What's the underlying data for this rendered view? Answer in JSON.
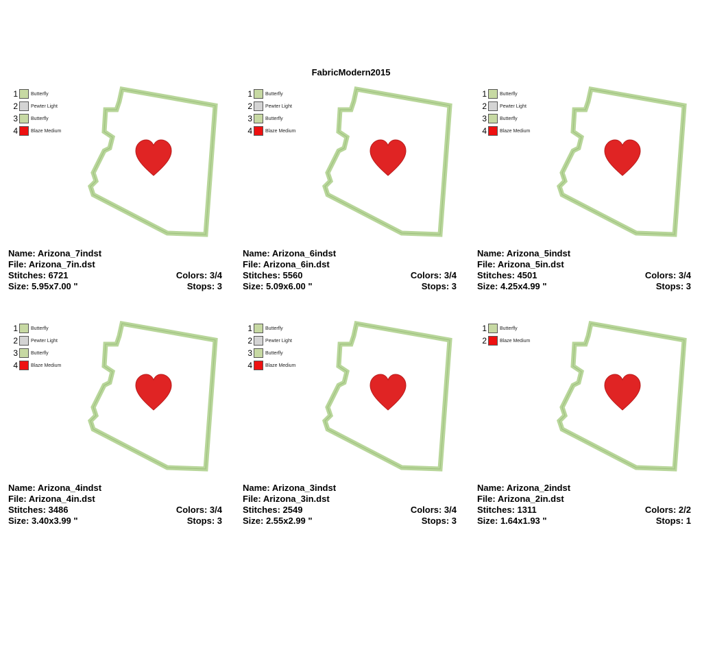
{
  "title": "FabricModern2015",
  "colors": {
    "outline": "#b8d69a",
    "outline_edge": "#9cbf7c",
    "heart": "#e02424",
    "heart_edge": "#b81c1c"
  },
  "designs": [
    {
      "name_text": "Name: Arizona_7indst",
      "file_text": "File: Arizona_7in.dst",
      "stitches_text": "Stitches: 6721",
      "colors_text": "Colors: 3/4",
      "size_text": "Size: 5.95x7.00 \"",
      "stops_text": "Stops: 3",
      "swatches": [
        {
          "num": "1",
          "name": "Butterfly",
          "color": "#c7d9a3"
        },
        {
          "num": "2",
          "name": "Pewter Light",
          "color": "#d4d4d4"
        },
        {
          "num": "3",
          "name": "Butterfly",
          "color": "#c7d9a3"
        },
        {
          "num": "4",
          "name": "Blaze Medium",
          "color": "#ee1111"
        }
      ]
    },
    {
      "name_text": "Name: Arizona_6indst",
      "file_text": "File: Arizona_6in.dst",
      "stitches_text": "Stitches: 5560",
      "colors_text": "Colors: 3/4",
      "size_text": "Size: 5.09x6.00 \"",
      "stops_text": "Stops: 3",
      "swatches": [
        {
          "num": "1",
          "name": "Butterfly",
          "color": "#c7d9a3"
        },
        {
          "num": "2",
          "name": "Pewter Light",
          "color": "#d4d4d4"
        },
        {
          "num": "3",
          "name": "Butterfly",
          "color": "#c7d9a3"
        },
        {
          "num": "4",
          "name": "Blaze Medium",
          "color": "#ee1111"
        }
      ]
    },
    {
      "name_text": "Name: Arizona_5indst",
      "file_text": "File: Arizona_5in.dst",
      "stitches_text": "Stitches: 4501",
      "colors_text": "Colors: 3/4",
      "size_text": "Size: 4.25x4.99 \"",
      "stops_text": "Stops: 3",
      "swatches": [
        {
          "num": "1",
          "name": "Butterfly",
          "color": "#c7d9a3"
        },
        {
          "num": "2",
          "name": "Pewter Light",
          "color": "#d4d4d4"
        },
        {
          "num": "3",
          "name": "Butterfly",
          "color": "#c7d9a3"
        },
        {
          "num": "4",
          "name": "Blaze Medium",
          "color": "#ee1111"
        }
      ]
    },
    {
      "name_text": "Name: Arizona_4indst",
      "file_text": "File: Arizona_4in.dst",
      "stitches_text": "Stitches: 3486",
      "colors_text": "Colors: 3/4",
      "size_text": "Size: 3.40x3.99 \"",
      "stops_text": "Stops: 3",
      "swatches": [
        {
          "num": "1",
          "name": "Butterfly",
          "color": "#c7d9a3"
        },
        {
          "num": "2",
          "name": "Pewter Light",
          "color": "#d4d4d4"
        },
        {
          "num": "3",
          "name": "Butterfly",
          "color": "#c7d9a3"
        },
        {
          "num": "4",
          "name": "Blaze Medium",
          "color": "#ee1111"
        }
      ]
    },
    {
      "name_text": "Name: Arizona_3indst",
      "file_text": "File: Arizona_3in.dst",
      "stitches_text": "Stitches: 2549",
      "colors_text": "Colors: 3/4",
      "size_text": "Size: 2.55x2.99 \"",
      "stops_text": "Stops: 3",
      "swatches": [
        {
          "num": "1",
          "name": "Butterfly",
          "color": "#c7d9a3"
        },
        {
          "num": "2",
          "name": "Pewter Light",
          "color": "#d4d4d4"
        },
        {
          "num": "3",
          "name": "Butterfly",
          "color": "#c7d9a3"
        },
        {
          "num": "4",
          "name": "Blaze Medium",
          "color": "#ee1111"
        }
      ]
    },
    {
      "name_text": "Name: Arizona_2indst",
      "file_text": "File: Arizona_2in.dst",
      "stitches_text": "Stitches: 1311",
      "colors_text": "Colors: 2/2",
      "size_text": "Size: 1.64x1.93 \"",
      "stops_text": "Stops: 1",
      "swatches": [
        {
          "num": "1",
          "name": "Butterfly",
          "color": "#c7d9a3"
        },
        {
          "num": "2",
          "name": "Blaze Medium",
          "color": "#ee1111"
        }
      ]
    }
  ]
}
